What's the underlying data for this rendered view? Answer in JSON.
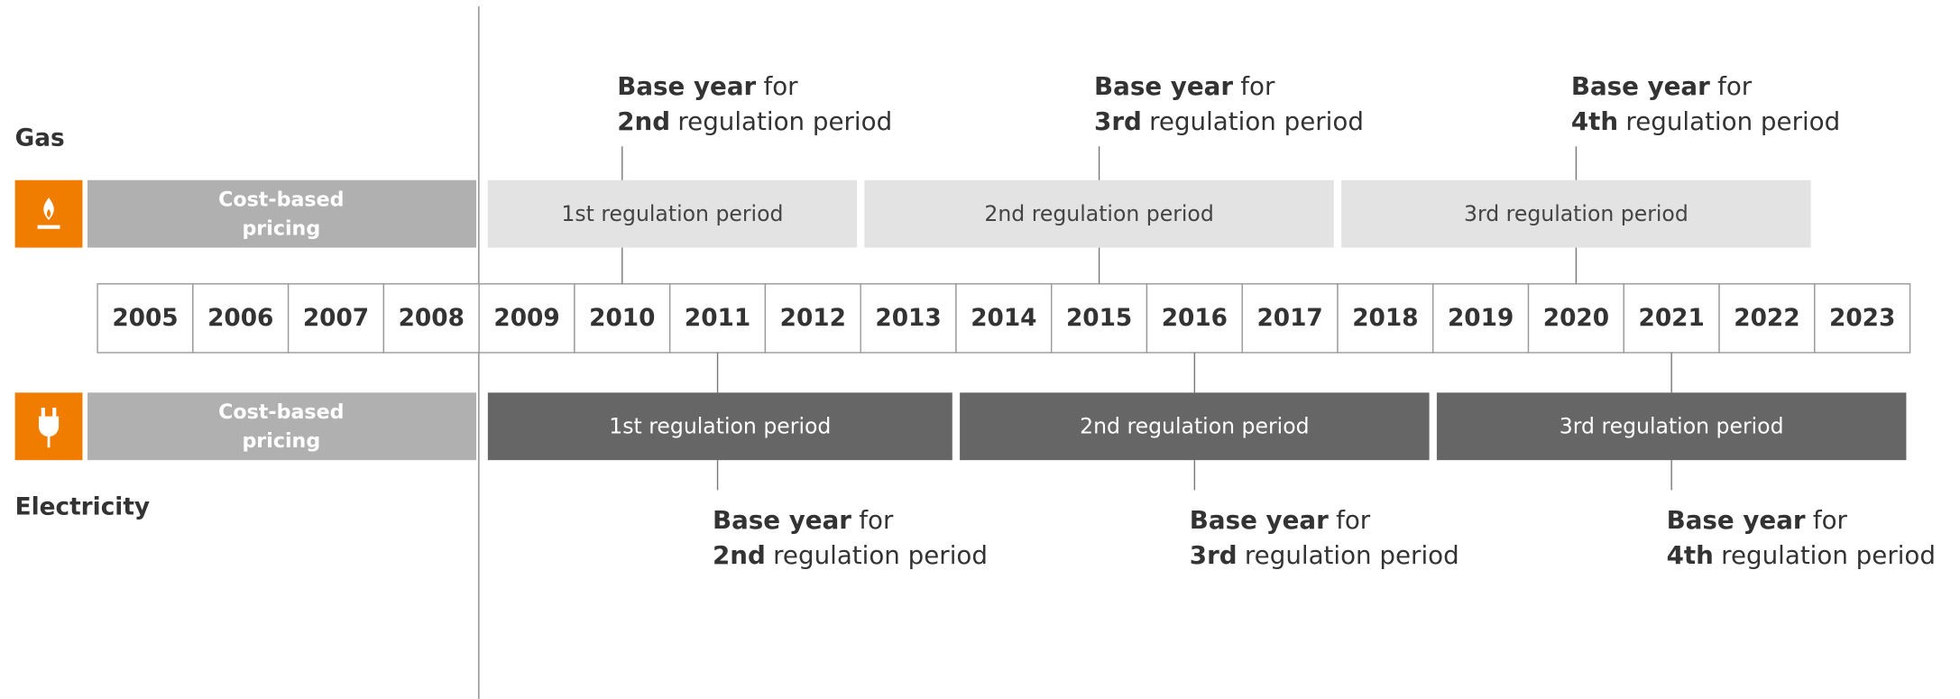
{
  "years": [
    "2005",
    "2006",
    "2007",
    "2008",
    "2009",
    "2010",
    "2011",
    "2012",
    "2013",
    "2014",
    "2015",
    "2016",
    "2017",
    "2018",
    "2019",
    "2020",
    "2021",
    "2022",
    "2023"
  ],
  "gas": {
    "label": "Gas",
    "pre": [
      "Cost-based",
      "pricing"
    ],
    "periods": [
      "1st regulation period",
      "2nd regulation period",
      "3rd regulation period"
    ],
    "base_years": [
      {
        "lead": "Base year",
        "for": "for",
        "ordinal": "2nd",
        "rest": "regulation period"
      },
      {
        "lead": "Base year",
        "for": "for",
        "ordinal": "3rd",
        "rest": "regulation period"
      },
      {
        "lead": "Base year",
        "for": "for",
        "ordinal": "4th",
        "rest": "regulation period"
      }
    ]
  },
  "electricity": {
    "label": "Electricity",
    "pre": [
      "Cost-based",
      "pricing"
    ],
    "periods": [
      "1st regulation period",
      "2nd regulation period",
      "3rd regulation period"
    ],
    "base_years": [
      {
        "lead": "Base year",
        "for": "for",
        "ordinal": "2nd",
        "rest": "regulation period"
      },
      {
        "lead": "Base year",
        "for": "for",
        "ordinal": "3rd",
        "rest": "regulation period"
      },
      {
        "lead": "Base year",
        "for": "for",
        "ordinal": "4th",
        "rest": "regulation period"
      }
    ]
  }
}
